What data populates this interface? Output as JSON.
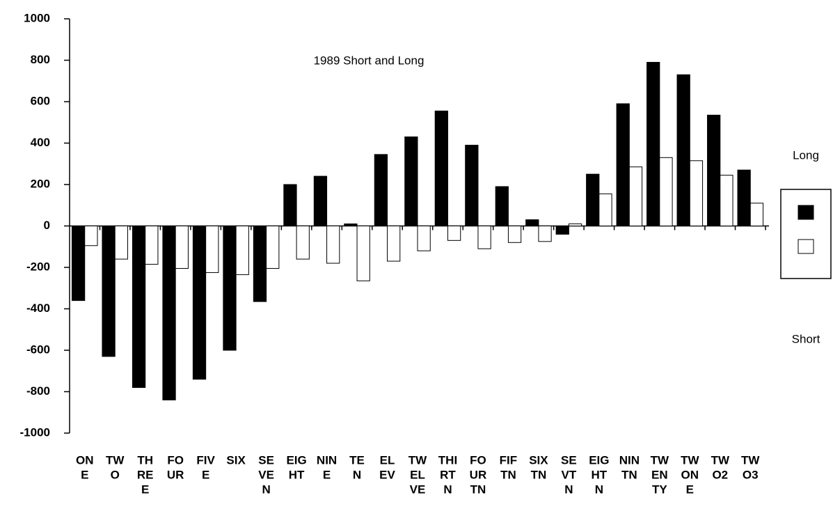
{
  "chart_data": {
    "type": "bar",
    "title": "1989 Short and Long",
    "categories": [
      [
        "ON",
        "E"
      ],
      [
        "TW",
        "O"
      ],
      [
        "TH",
        "RE",
        "E"
      ],
      [
        "FO",
        "UR"
      ],
      [
        "FIV",
        "E"
      ],
      [
        "SIX"
      ],
      [
        "SE",
        "VE",
        "N"
      ],
      [
        "EIG",
        "HT"
      ],
      [
        "NIN",
        "E"
      ],
      [
        "TE",
        "N"
      ],
      [
        "EL",
        "EV"
      ],
      [
        "TW",
        "EL",
        "VE"
      ],
      [
        "THI",
        "RT",
        "N"
      ],
      [
        "FO",
        "UR",
        "TN"
      ],
      [
        "FIF",
        "TN"
      ],
      [
        "SIX",
        "TN"
      ],
      [
        "SE",
        "VT",
        "N"
      ],
      [
        "EIG",
        "HT",
        "N"
      ],
      [
        "NIN",
        "TN"
      ],
      [
        "TW",
        "EN",
        "TY"
      ],
      [
        "TW",
        "ON",
        "E"
      ],
      [
        "TW",
        "O2"
      ],
      [
        "TW",
        "O3"
      ]
    ],
    "series": [
      {
        "name": "Long",
        "color": "#000000",
        "values": [
          -360,
          -630,
          -780,
          -840,
          -740,
          -600,
          -365,
          200,
          240,
          10,
          345,
          430,
          555,
          390,
          190,
          30,
          -40,
          250,
          590,
          790,
          730,
          535,
          270
        ]
      },
      {
        "name": "Short",
        "color": "#ffffff",
        "values": [
          -95,
          -160,
          -185,
          -205,
          -225,
          -235,
          -205,
          -160,
          -180,
          -265,
          -170,
          -120,
          -70,
          -110,
          -80,
          -75,
          10,
          155,
          285,
          330,
          315,
          245,
          110
        ]
      }
    ],
    "ylim": [
      -1000,
      1000
    ],
    "yticks": [
      -1000,
      -800,
      -600,
      -400,
      -200,
      0,
      200,
      400,
      600,
      800,
      1000
    ],
    "grid": false
  }
}
